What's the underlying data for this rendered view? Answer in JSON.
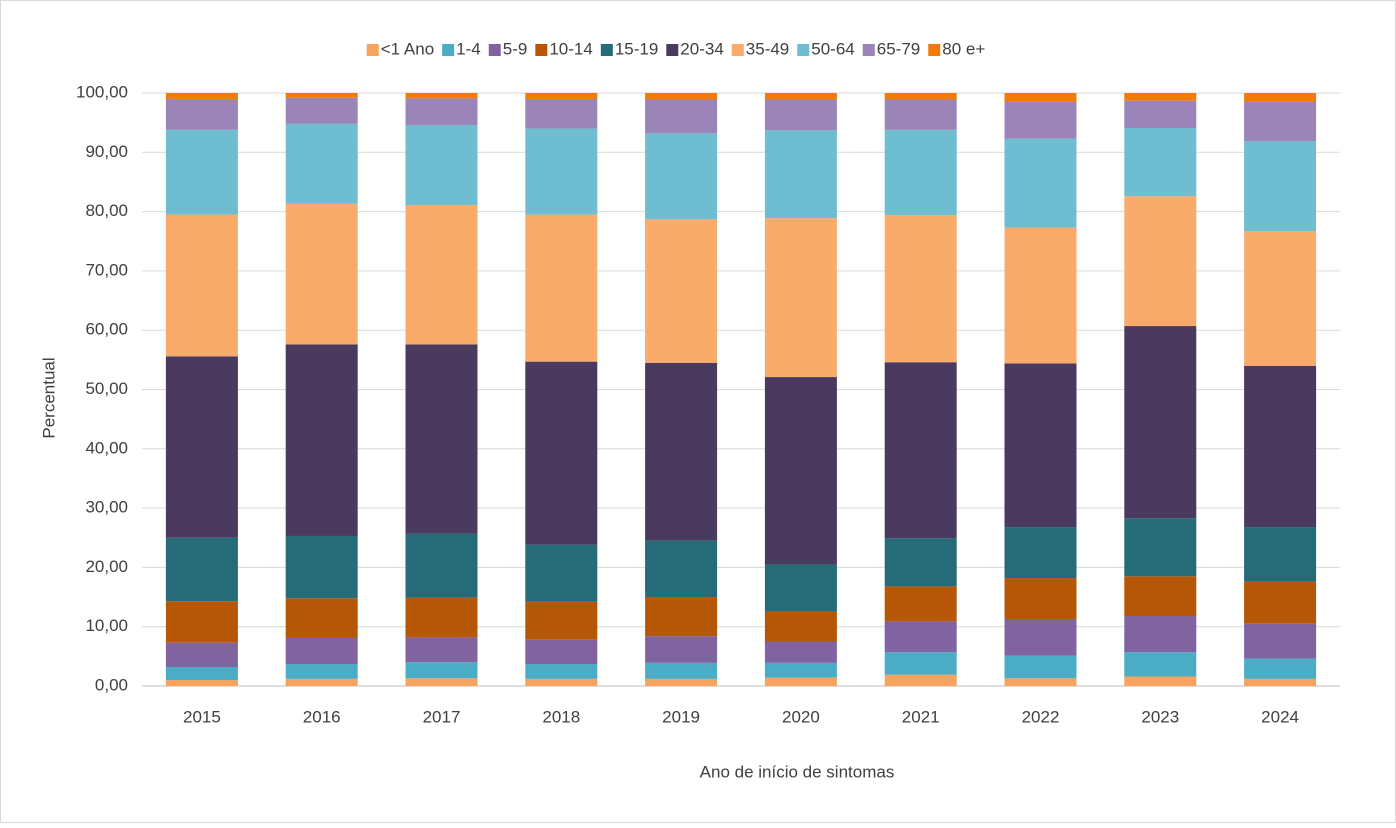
{
  "chart_data": {
    "type": "stacked_bar",
    "x_label": "Ano de início de sintomas",
    "y_label": "Percentual",
    "categories": [
      "2015",
      "2016",
      "2017",
      "2018",
      "2019",
      "2020",
      "2021",
      "2022",
      "2023",
      "2024"
    ],
    "series": [
      {
        "name": "<1 Ano",
        "color": "#f6a35e",
        "values": [
          1.0,
          1.2,
          1.3,
          1.2,
          1.2,
          1.4,
          1.9,
          1.3,
          1.6,
          1.2
        ]
      },
      {
        "name": "1-4",
        "color": "#4bacc6",
        "values": [
          2.2,
          2.5,
          2.7,
          2.5,
          2.7,
          2.5,
          3.8,
          3.8,
          4.1,
          3.4
        ]
      },
      {
        "name": "5-9",
        "color": "#8064a2",
        "values": [
          4.1,
          4.4,
          4.2,
          4.1,
          4.5,
          3.6,
          5.2,
          6.2,
          6.1,
          5.9
        ]
      },
      {
        "name": "10-14",
        "color": "#b65708",
        "values": [
          7.0,
          6.7,
          6.7,
          6.4,
          6.6,
          5.0,
          5.9,
          6.9,
          6.7,
          7.1
        ]
      },
      {
        "name": "15-19",
        "color": "#256b78",
        "values": [
          10.7,
          10.5,
          10.8,
          9.6,
          9.5,
          8.0,
          8.1,
          8.6,
          9.8,
          9.2
        ]
      },
      {
        "name": "20-34",
        "color": "#4b3a5f",
        "values": [
          30.6,
          32.3,
          31.9,
          30.9,
          30.0,
          31.6,
          29.7,
          27.6,
          32.4,
          27.2
        ]
      },
      {
        "name": "35-49",
        "color": "#f9ab6b",
        "values": [
          23.9,
          23.7,
          23.5,
          24.8,
          24.2,
          26.8,
          24.8,
          22.9,
          21.9,
          22.7
        ]
      },
      {
        "name": "50-64",
        "color": "#6ebdd1",
        "values": [
          14.3,
          13.5,
          13.5,
          14.5,
          14.5,
          14.8,
          14.4,
          15.0,
          11.5,
          15.2
        ]
      },
      {
        "name": "65-79",
        "color": "#9a84b8",
        "values": [
          5.2,
          4.4,
          4.5,
          5.0,
          5.7,
          5.2,
          5.1,
          6.2,
          4.6,
          6.6
        ]
      },
      {
        "name": "80 e+",
        "color": "#f07b0a",
        "values": [
          1.0,
          0.8,
          0.9,
          1.0,
          1.1,
          1.1,
          1.1,
          1.5,
          1.3,
          1.5
        ]
      }
    ],
    "ylim": [
      0,
      100
    ],
    "yticks": [
      {
        "value": 0,
        "label": "0,00"
      },
      {
        "value": 10,
        "label": "10,00"
      },
      {
        "value": 20,
        "label": "20,00"
      },
      {
        "value": 30,
        "label": "30,00"
      },
      {
        "value": 40,
        "label": "40,00"
      },
      {
        "value": 50,
        "label": "50,00"
      },
      {
        "value": 60,
        "label": "60,00"
      },
      {
        "value": 70,
        "label": "70,00"
      },
      {
        "value": 80,
        "label": "80,00"
      },
      {
        "value": 90,
        "label": "90,00"
      },
      {
        "value": 100,
        "label": "100,00"
      }
    ],
    "grid": true,
    "legend": "top"
  }
}
